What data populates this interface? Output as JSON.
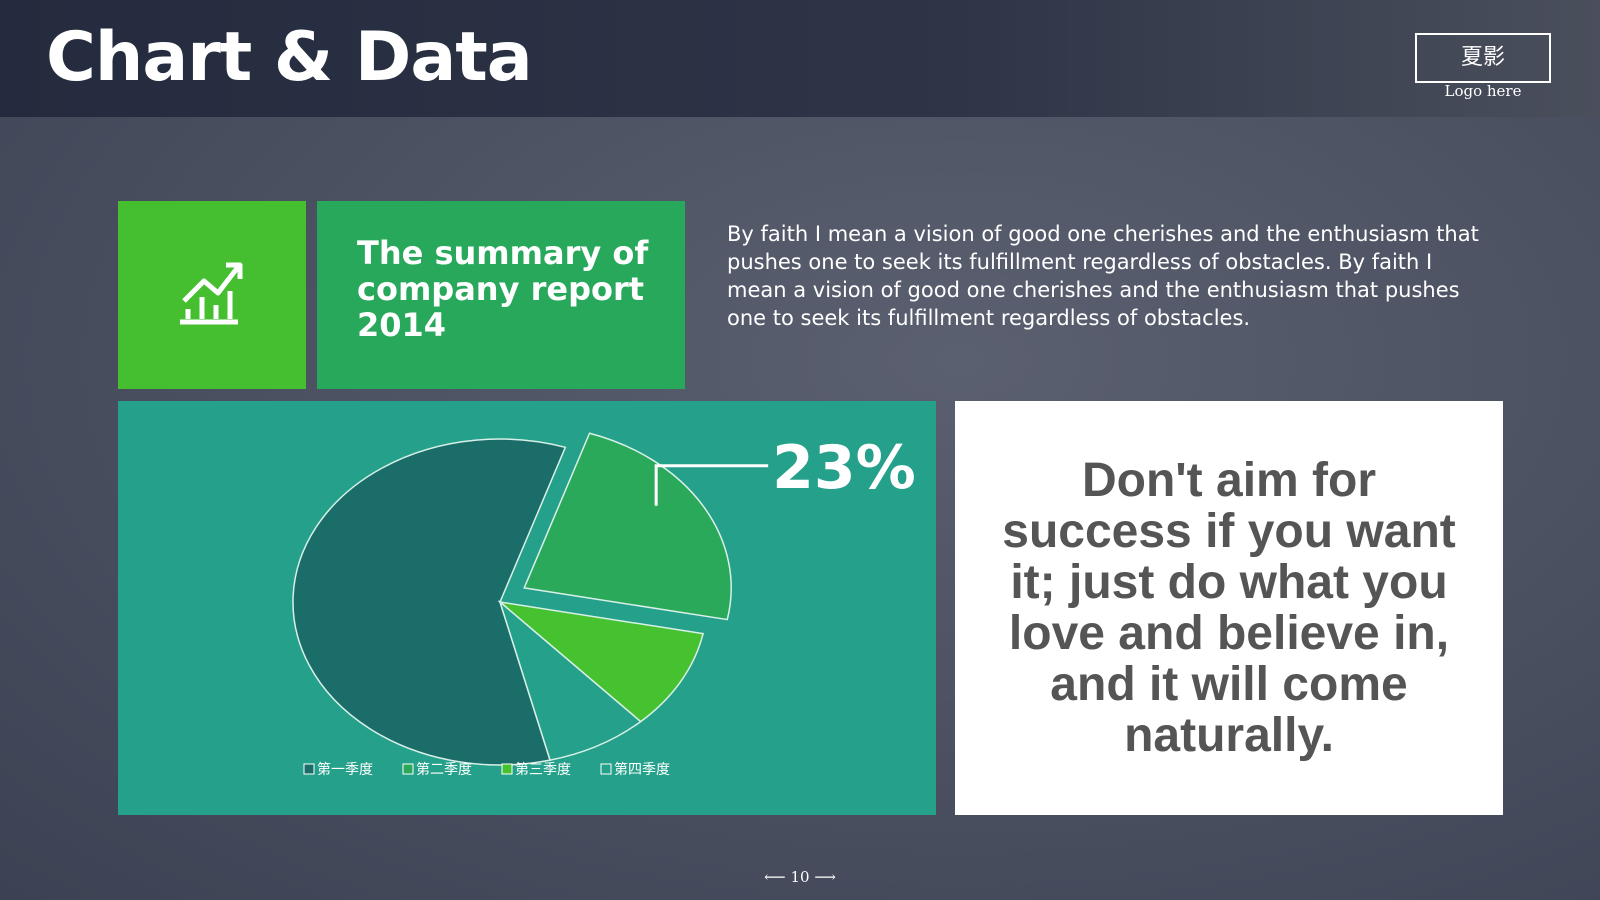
{
  "header": {
    "title": "Chart & Data",
    "logo": "夏影",
    "logo_caption": "Logo here"
  },
  "summary": {
    "title": "The summary of company report 2014"
  },
  "paragraph": "By faith I mean a vision of good one cherishes and the enthusiasm that pushes one to seek its fulfillment regardless of obstacles. By faith I mean a vision of good one cherishes and the enthusiasm that pushes one to seek its fulfillment regardless of obstacles.",
  "quote": "Don't aim for success if you want it; just do what you love and believe in, and it will come naturally.",
  "nav": {
    "page": "10"
  },
  "chart_data": {
    "type": "pie",
    "categories": [
      "第一季度",
      "第二季度",
      "第三季度",
      "第四季度"
    ],
    "values": [
      59,
      23,
      10,
      8
    ],
    "value_labels": [
      null,
      "23%",
      null,
      null
    ],
    "colors": [
      "#1b6d6a",
      "#2aa95b",
      "#46c130",
      "#25a08a"
    ],
    "exploded": [
      false,
      true,
      false,
      false
    ],
    "legend": "bottom"
  }
}
